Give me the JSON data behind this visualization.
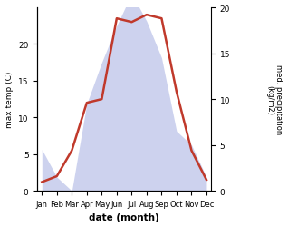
{
  "months": [
    "Jan",
    "Feb",
    "Mar",
    "Apr",
    "May",
    "Jun",
    "Jul",
    "Aug",
    "Sep",
    "Oct",
    "Nov",
    "Dec"
  ],
  "temperature": [
    1.2,
    2.0,
    5.5,
    12.0,
    12.5,
    23.5,
    23.0,
    24.0,
    23.5,
    13.5,
    5.5,
    1.5
  ],
  "precipitation": [
    4.5,
    1.5,
    0.0,
    9.5,
    14.0,
    18.0,
    21.5,
    18.5,
    14.5,
    6.5,
    5.0,
    1.5
  ],
  "temp_color": "#c0392b",
  "precip_fill_color": "#b8c0e8",
  "xlabel": "date (month)",
  "ylabel_left": "max temp (C)",
  "ylabel_right": "med. precipitation\n(kg/m2)",
  "ylim_left": [
    0,
    25
  ],
  "ylim_right": [
    0,
    20
  ],
  "yticks_left": [
    0,
    5,
    10,
    15,
    20
  ],
  "yticks_right": [
    0,
    5,
    10,
    15,
    20
  ],
  "background_color": "#ffffff"
}
